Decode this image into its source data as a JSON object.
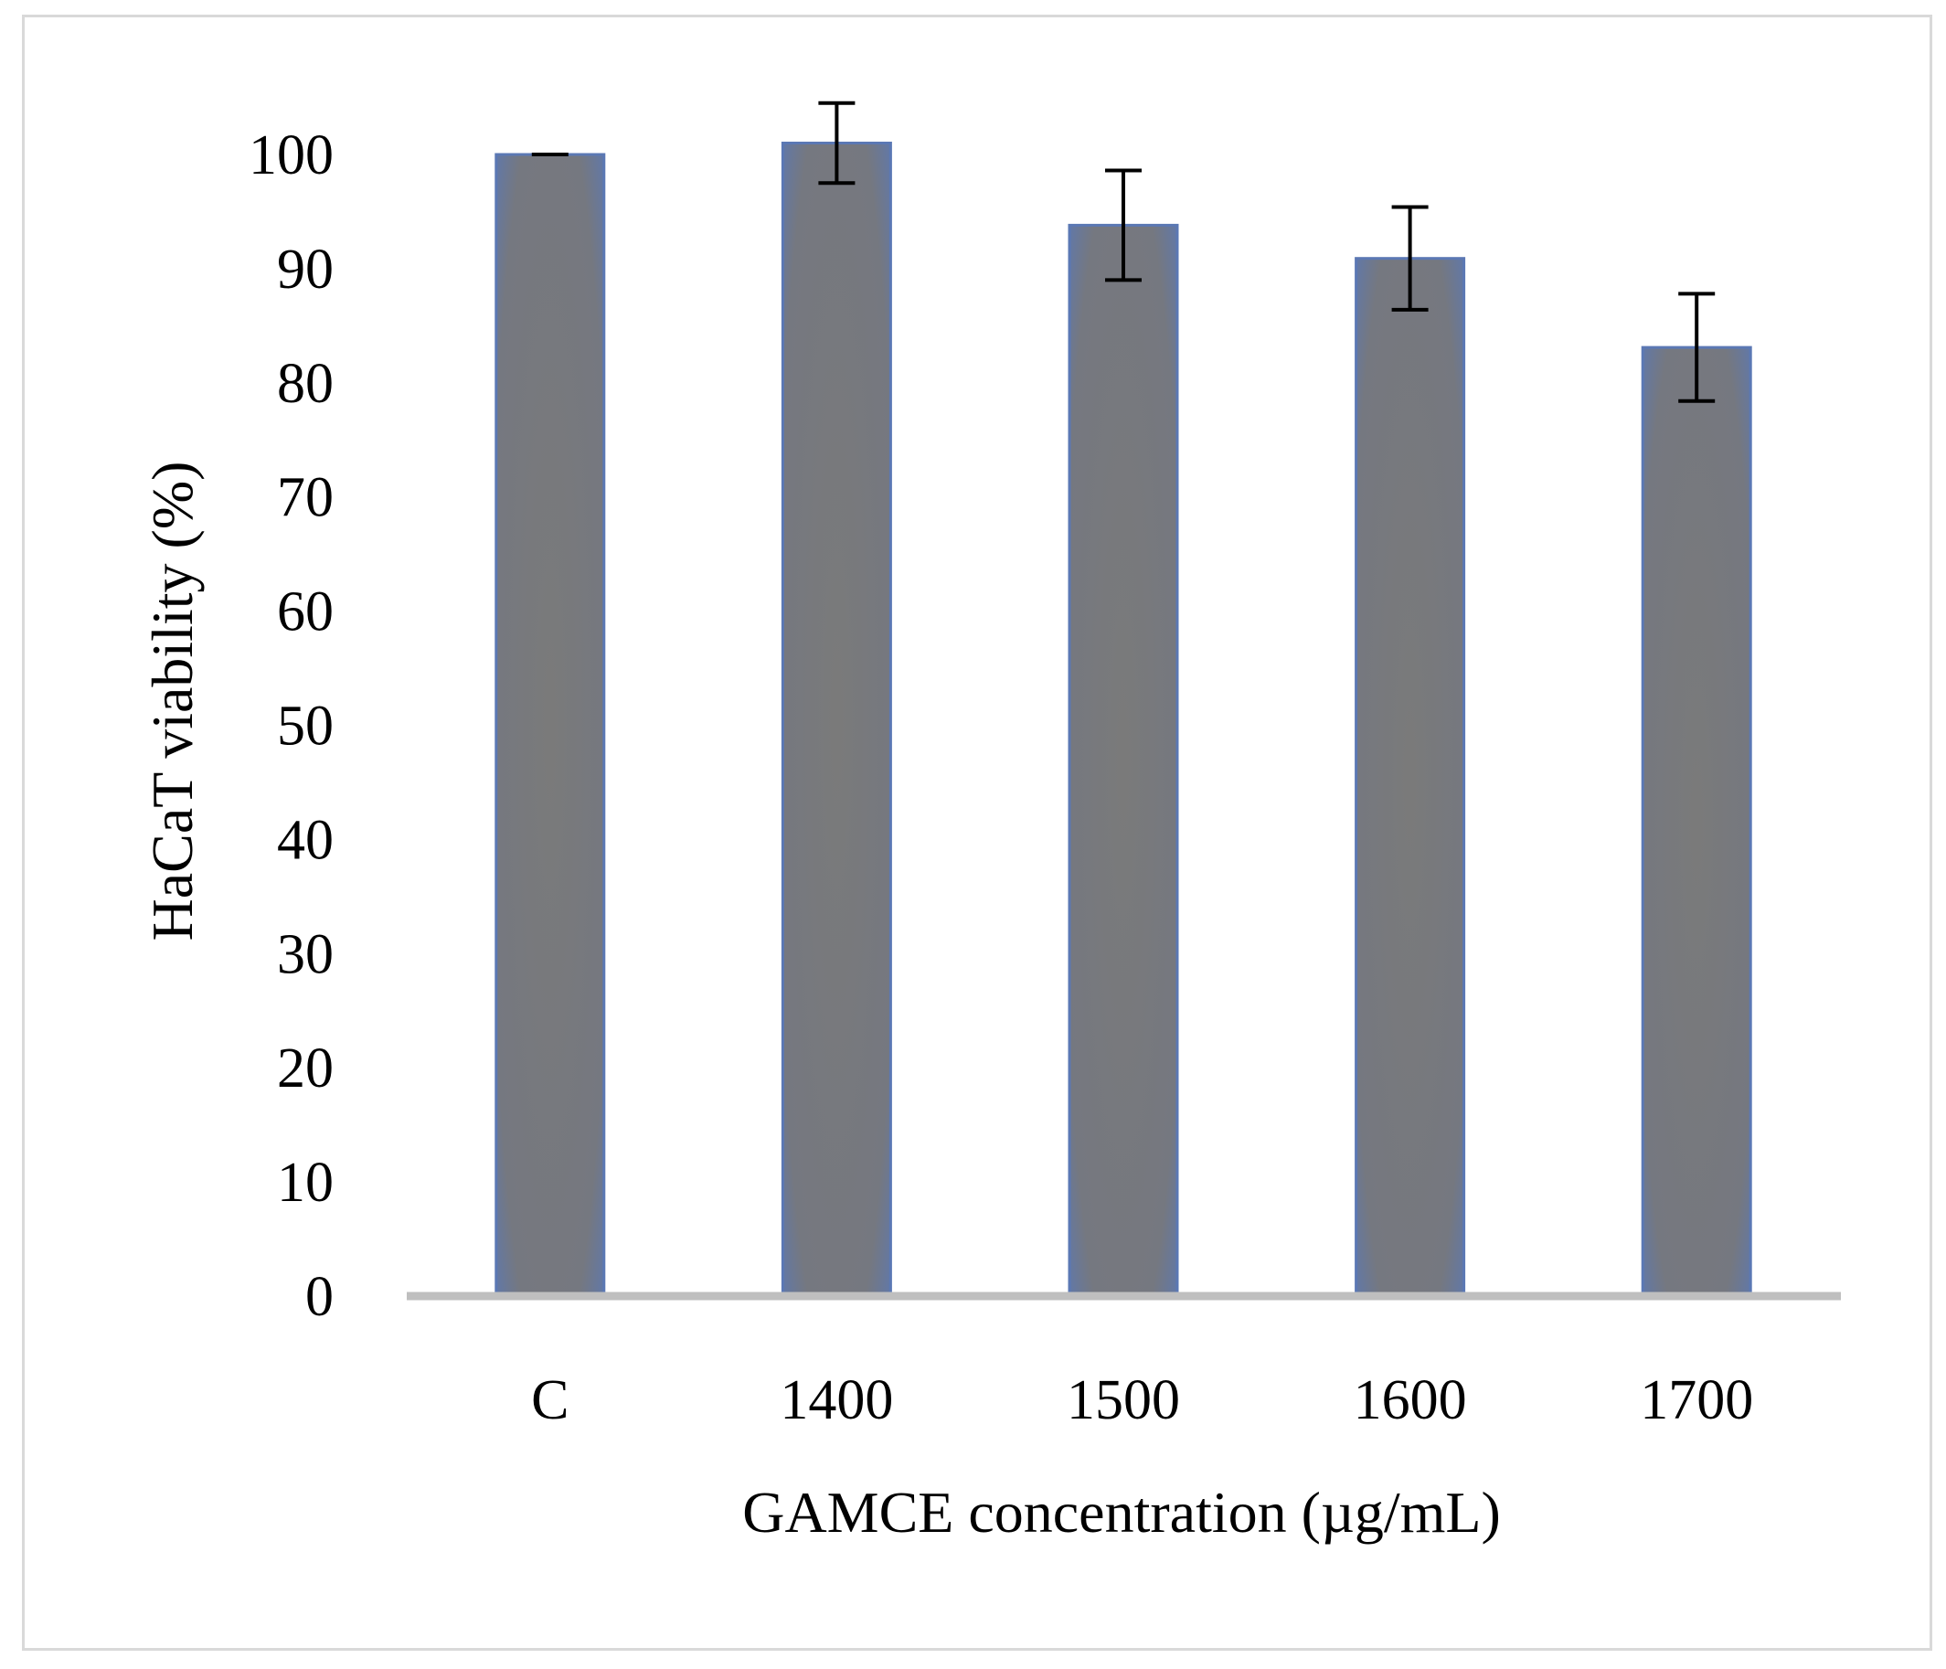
{
  "chart_data": {
    "type": "bar",
    "title": "",
    "xlabel": "GAMCE concentration (µg/mL)",
    "ylabel": "HaCaT viability (%)",
    "categories": [
      "C",
      "1400",
      "1500",
      "1600",
      "1700"
    ],
    "values": [
      100,
      101,
      93.8,
      90.9,
      83.1
    ],
    "error": [
      0,
      3.5,
      4.8,
      4.5,
      4.7
    ],
    "ylim": [
      0,
      100
    ],
    "yticks": [
      0,
      10,
      20,
      30,
      40,
      50,
      60,
      70,
      80,
      90,
      100
    ],
    "grid": false,
    "legend": "none",
    "colors": {
      "bar_fill": "#7a7a7a",
      "bar_edge": "#5b78b4",
      "axis": "#bfbfbf",
      "error_bar": "#000000",
      "frame": "#d9d9d9"
    }
  }
}
